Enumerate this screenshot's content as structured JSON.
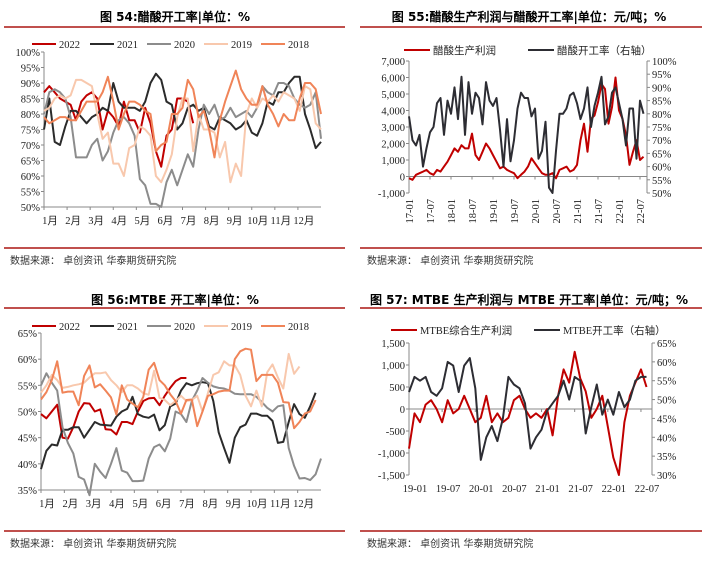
{
  "chart_data": [
    {
      "type": "line",
      "title": "图 54:醋酸开工率|单位：%",
      "source": "数据来源： 卓创资讯 华泰期货研究院",
      "x_unit": "week of year",
      "x_ticks": [
        "1月",
        "2月",
        "3月",
        "4月",
        "5月",
        "6月",
        "7月",
        "8月",
        "9月",
        "10月",
        "11月",
        "12月"
      ],
      "ylim": [
        50,
        100
      ],
      "y_ticks": [
        "50%",
        "55%",
        "60%",
        "65%",
        "70%",
        "75%",
        "80%",
        "85%",
        "90%",
        "95%",
        "100%"
      ],
      "legend_position": "top",
      "series": [
        {
          "name": "2022",
          "color": "#c00000",
          "values": [
            87,
            89,
            87,
            85,
            84,
            83,
            78,
            84,
            86,
            87,
            85,
            75,
            81,
            79,
            76,
            84,
            78,
            78,
            74,
            82,
            77,
            68,
            63,
            73,
            75,
            85,
            85,
            84,
            77
          ]
        },
        {
          "name": "2021",
          "color": "#2b2b2b",
          "values": [
            75,
            85,
            71,
            70,
            76,
            81,
            81,
            79,
            77,
            79,
            80,
            82,
            81,
            90,
            84,
            82,
            82,
            82,
            81,
            84,
            90,
            93,
            91,
            84,
            83,
            75,
            77,
            82,
            83,
            81,
            82,
            76,
            75,
            79,
            78,
            77,
            75,
            76,
            78,
            74,
            73,
            77,
            84,
            83,
            87,
            87,
            90,
            92,
            92,
            80,
            75,
            69,
            71
          ]
        },
        {
          "name": "2020",
          "color": "#8c8c8c",
          "values": [
            80,
            87,
            88,
            87,
            85,
            79,
            66,
            66,
            66,
            70,
            72,
            65,
            68,
            74,
            78,
            79,
            77,
            73,
            59,
            57,
            51,
            51,
            50,
            58,
            62,
            57,
            62,
            67,
            63,
            75,
            83,
            80,
            83,
            78,
            79,
            82,
            79,
            80,
            81,
            79,
            82,
            89,
            87,
            86,
            90,
            90,
            89,
            85,
            83,
            82,
            83,
            87,
            72
          ]
        },
        {
          "name": "2019",
          "color": "#f8c8ad",
          "values": [
            81,
            82,
            85,
            86,
            85,
            86,
            91,
            91,
            90,
            89,
            80,
            72,
            74,
            64,
            64,
            60,
            69,
            70,
            76,
            75,
            73,
            60,
            58,
            62,
            67,
            79,
            85,
            85,
            68,
            80,
            75,
            75,
            74,
            66,
            71,
            58,
            64,
            60,
            80,
            85,
            82,
            85,
            84,
            86,
            84,
            87,
            86,
            85,
            81,
            89,
            88,
            77,
            75
          ]
        },
        {
          "name": "2018",
          "color": "#f08458",
          "values": [
            79,
            77,
            78,
            79,
            79,
            78,
            78,
            81,
            84,
            84,
            84,
            87,
            92,
            84,
            75,
            80,
            84,
            84,
            83,
            81,
            80,
            68,
            70,
            71,
            80,
            80,
            82,
            91,
            88,
            79,
            81,
            75,
            66,
            78,
            84,
            89,
            94,
            88,
            85,
            83,
            83,
            89,
            83,
            80,
            76,
            80,
            78,
            78,
            85,
            90,
            90,
            88,
            80
          ]
        }
      ]
    },
    {
      "type": "line",
      "title": "图 55:醋酸生产利润与醋酸开工率|单位：元/吨；%",
      "source": "数据来源： 卓创资讯 华泰期货研究院",
      "x_unit": "month index from 17-01",
      "x_ticks": [
        "17-01",
        "17-07",
        "18-01",
        "18-07",
        "19-01",
        "19-07",
        "20-01",
        "20-07",
        "21-01",
        "21-07",
        "22-01",
        "22-07"
      ],
      "ylim": [
        -1000,
        7000
      ],
      "y_ticks": [
        "-1,000",
        "0",
        "1,000",
        "2,000",
        "3,000",
        "4,000",
        "5,000",
        "6,000",
        "7,000"
      ],
      "y2lim": [
        50,
        100
      ],
      "y2_ticks": [
        "50%",
        "55%",
        "60%",
        "65%",
        "70%",
        "75%",
        "80%",
        "85%",
        "90%",
        "95%",
        "100%"
      ],
      "legend_position": "top",
      "series": [
        {
          "name": "醋酸生产利润",
          "axis": "left",
          "color": "#c00000",
          "values": [
            -100,
            -200,
            100,
            200,
            300,
            400,
            200,
            100,
            400,
            300,
            600,
            900,
            1300,
            1700,
            1500,
            1900,
            1700,
            1700,
            2600,
            1300,
            1000,
            1500,
            2000,
            1700,
            1300,
            900,
            500,
            600,
            400,
            300,
            200,
            -100,
            100,
            300,
            600,
            1100,
            800,
            500,
            200,
            100,
            100,
            200,
            -100,
            400,
            500,
            600,
            300,
            400,
            700,
            2200,
            3200,
            1500,
            3500,
            3700,
            4500,
            5600,
            5300,
            3200,
            4200,
            6000,
            4000,
            3500,
            2500,
            700,
            1500,
            2200,
            1000,
            1200
          ]
        },
        {
          "name": "醋酸开工率（右轴）",
          "axis": "right",
          "color": "#2d2d33",
          "values": [
            79,
            70,
            68,
            72,
            60,
            67,
            73,
            75,
            84,
            86,
            72,
            85,
            80,
            90,
            78,
            94,
            72,
            92,
            80,
            88,
            86,
            76,
            92,
            85,
            83,
            86,
            74,
            60,
            78,
            62,
            70,
            82,
            88,
            86,
            86,
            79,
            82,
            63,
            66,
            77,
            52,
            50,
            66,
            80,
            80,
            82,
            87,
            88,
            84,
            78,
            82,
            90,
            75,
            83,
            88,
            94,
            76,
            79,
            88,
            90,
            84,
            78,
            68,
            82,
            82,
            63,
            85,
            80
          ]
        }
      ]
    },
    {
      "type": "line",
      "title": "图 56:MTBE 开工率|单位：%",
      "source": "数据来源： 卓创资讯 华泰期货研究院",
      "x_unit": "week of year",
      "x_ticks": [
        "1月",
        "2月",
        "3月",
        "4月",
        "5月",
        "6月",
        "7月",
        "8月",
        "9月",
        "10月",
        "11月",
        "12月"
      ],
      "ylim": [
        35,
        65
      ],
      "y_ticks": [
        "35%",
        "40%",
        "45%",
        "50%",
        "55%",
        "60%",
        "65%"
      ],
      "legend_position": "top",
      "series": [
        {
          "name": "2022",
          "color": "#c00000",
          "values": [
            49.5,
            48.7,
            50,
            51.3,
            45,
            44.8,
            47,
            50,
            51.6,
            51.5,
            50,
            50.4,
            46.6,
            46.5,
            45.6,
            48,
            48,
            47.6,
            50,
            52,
            52.5,
            52.6,
            51.2,
            53,
            54.5,
            55.8,
            56.4,
            56.4
          ]
        },
        {
          "name": "2021",
          "color": "#2b2b2b",
          "values": [
            39,
            42.5,
            43.7,
            43.5,
            46.5,
            46.5,
            47,
            47,
            45,
            46.5,
            48,
            47.5,
            47.4,
            47.3,
            49,
            50,
            50.5,
            52.8,
            49.5,
            49,
            48.8,
            49.4,
            46.4,
            47.4,
            51,
            51.5,
            54,
            55.4,
            55,
            55.4,
            55.6,
            55.4,
            52,
            46,
            43,
            40.2,
            45,
            47,
            47.5,
            49.6,
            49.6,
            49.2,
            49.2,
            48.2,
            44,
            44.2,
            48,
            51.4,
            49.5,
            48.8,
            51,
            53.6
          ]
        },
        {
          "name": "2020",
          "color": "#8c8c8c",
          "values": [
            55,
            57.3,
            55.5,
            54,
            47,
            44,
            42,
            37.5,
            37,
            34,
            40,
            38.5,
            37.3,
            40,
            43,
            38.7,
            38.3,
            36.7,
            36.7,
            36.8,
            41,
            43.2,
            43.7,
            42.4,
            44.8,
            50,
            49.5,
            48,
            52,
            54,
            56.4,
            55.5,
            54.8,
            54.5,
            54.4,
            54,
            53.4,
            53.3,
            53.3,
            53.3,
            52.8,
            51.8,
            50.7,
            50,
            51,
            51.2,
            43,
            39.6,
            37.2,
            37.3,
            36.9,
            38,
            41,
            40.6
          ]
        },
        {
          "name": "2019",
          "color": "#f8c8ad",
          "values": [
            53.6,
            55,
            57,
            56,
            54.5,
            54.7,
            55,
            55.2,
            55.5,
            56.5,
            57.3,
            57.3,
            57.5,
            56,
            55,
            53.7,
            55,
            55,
            54.4,
            53.5,
            53.2,
            57.8,
            52.6,
            52.2,
            51.2,
            52,
            53,
            52,
            52.2,
            53,
            50,
            53.5,
            57,
            57.5,
            59.6,
            58.8,
            58.8,
            57,
            53,
            51,
            54,
            51,
            57.5,
            59,
            56.5,
            54.4,
            61,
            57.2,
            58.6
          ]
        },
        {
          "name": "2018",
          "color": "#f08458",
          "values": [
            52.3,
            53.7,
            56,
            59.6,
            53.6,
            53.8,
            53.8,
            51.2,
            56.8,
            58.8,
            54.6,
            55.2,
            54,
            52.7,
            49.4,
            55,
            52.3,
            51.5,
            50.8,
            52.8,
            58,
            59.3,
            56,
            55,
            53.3,
            52,
            49.6,
            52.2,
            52.3,
            47.2,
            50,
            53,
            53.3,
            53.8,
            54,
            54,
            60,
            61.5,
            62,
            61.8,
            55.8,
            57,
            57,
            57,
            55.5,
            51.8,
            51.7,
            46.8,
            48,
            49.6,
            50,
            52.2
          ]
        }
      ]
    },
    {
      "type": "line",
      "title": "图 57: MTBE 生产利润与 MTBE 开工率|单位：元/吨；%",
      "source": "数据来源： 卓创资讯 华泰期货研究院",
      "x_unit": "month index from 19-01",
      "x_ticks": [
        "19-01",
        "19-07",
        "20-01",
        "20-07",
        "21-01",
        "21-07",
        "22-01",
        "22-07"
      ],
      "ylim": [
        -1500,
        1500
      ],
      "y_ticks": [
        "-1,500",
        "-1,000",
        "-500",
        "0",
        "500",
        "1,000",
        "1,500"
      ],
      "y2lim": [
        30,
        65
      ],
      "y2_ticks": [
        "30%",
        "35%",
        "40%",
        "45%",
        "50%",
        "55%",
        "60%",
        "65%"
      ],
      "legend_position": "top",
      "series": [
        {
          "name": "MTBE综合生产利润",
          "axis": "left",
          "color": "#c00000",
          "values": [
            -900,
            -100,
            -300,
            100,
            200,
            0,
            -300,
            200,
            -100,
            0,
            300,
            0,
            -300,
            -200,
            300,
            -300,
            -100,
            -300,
            -200,
            200,
            300,
            0,
            -200,
            -100,
            -200,
            0,
            -600,
            300,
            900,
            600,
            1300,
            700,
            400,
            -200,
            0,
            300,
            -400,
            -1100,
            -1500,
            -300,
            300,
            600,
            900,
            500
          ]
        },
        {
          "name": "MTBE开工率（右轴）",
          "axis": "right",
          "color": "#2d2d33",
          "values": [
            52,
            56,
            55,
            56,
            52,
            51,
            53,
            60,
            59,
            52,
            59,
            61,
            53,
            34,
            40,
            43,
            39,
            45,
            56,
            54,
            53,
            49,
            37,
            40,
            42,
            47,
            49,
            51,
            55,
            50,
            56,
            55,
            41,
            48,
            54,
            46,
            50,
            46,
            52,
            48,
            50,
            55,
            56,
            56
          ]
        }
      ]
    }
  ]
}
